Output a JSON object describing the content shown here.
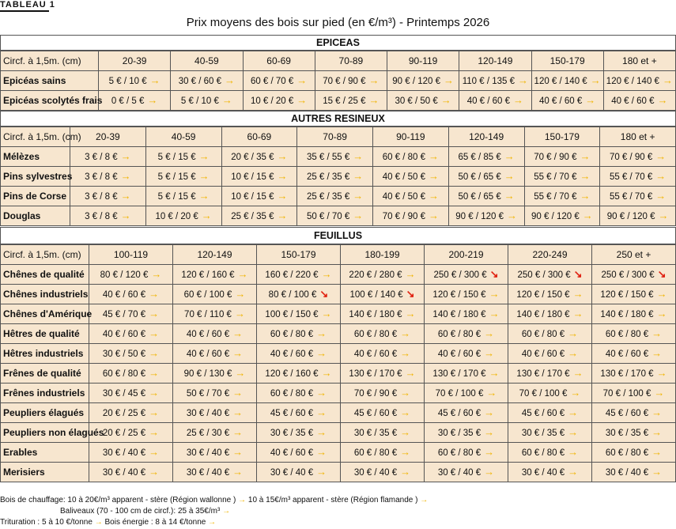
{
  "tag": "TABLEAU 1",
  "title": "Prix moyens des bois sur pied (en €/m³) - Printemps 2026",
  "sections": [
    {
      "name": "EPICEAS",
      "header_label": "Circf. à 1,5m. (cm)",
      "columns": [
        "20-39",
        "40-59",
        "60-69",
        "70-89",
        "90-119",
        "120-149",
        "150-179",
        "180 et +"
      ],
      "rows": [
        {
          "label": "Epicéas sains",
          "values": [
            "5 € / 10 €",
            "30 € / 60 €",
            "60 € / 70 €",
            "70 € / 90 €",
            "90 € / 120 €",
            "110 € / 135 €",
            "120 € / 140 €",
            "120 € / 140 €"
          ],
          "trend": [
            "up",
            "up",
            "up",
            "up",
            "up",
            "up",
            "up",
            "up"
          ]
        },
        {
          "label": "Epicéas scolytés frais",
          "values": [
            "0 € / 5 €",
            "5 € / 10 €",
            "10 € / 20 €",
            "15 € / 25 €",
            "30 € / 50 €",
            "40 € / 60 €",
            "40 € / 60 €",
            "40 € / 60 €"
          ],
          "trend": [
            "up",
            "up",
            "up",
            "up",
            "up",
            "up",
            "up",
            "up"
          ]
        }
      ]
    },
    {
      "name": "AUTRES RESINEUX",
      "header_label": "Circf. à 1,5m. (cm)",
      "columns": [
        "20-39",
        "40-59",
        "60-69",
        "70-89",
        "90-119",
        "120-149",
        "150-179",
        "180 et +"
      ],
      "rows": [
        {
          "label": "Mélèzes",
          "values": [
            "3 € / 8 €",
            "5 € / 15 €",
            "20 € / 35 €",
            "35 € / 55 €",
            "60 € / 80 €",
            "65 € / 85 €",
            "70 € / 90 €",
            "70 € / 90 €"
          ],
          "trend": [
            "up",
            "up",
            "up",
            "up",
            "up",
            "up",
            "up",
            "up"
          ]
        },
        {
          "label": "Pins sylvestres",
          "values": [
            "3 € / 8 €",
            "5 € / 15 €",
            "10 € / 15 €",
            "25 € / 35 €",
            "40 € / 50 €",
            "50 € / 65 €",
            "55 € / 70 €",
            "55 € / 70 €"
          ],
          "trend": [
            "up",
            "up",
            "up",
            "up",
            "up",
            "up",
            "up",
            "up"
          ]
        },
        {
          "label": "Pins de Corse",
          "values": [
            "3 € / 8 €",
            "5 € / 15 €",
            "10 € / 15 €",
            "25 € / 35 €",
            "40 € / 50 €",
            "50 € / 65 €",
            "55 € / 70 €",
            "55 € / 70 €"
          ],
          "trend": [
            "up",
            "up",
            "up",
            "up",
            "up",
            "up",
            "up",
            "up"
          ]
        },
        {
          "label": "Douglas",
          "values": [
            "3 € / 8 €",
            "10 € / 20 €",
            "25 € / 35 €",
            "50 € / 70 €",
            "70 € / 90 €",
            "90 € / 120 €",
            "90 € / 120 €",
            "90 € / 120 €"
          ],
          "trend": [
            "up",
            "up",
            "up",
            "up",
            "up",
            "up",
            "up",
            "up"
          ]
        }
      ]
    },
    {
      "name": "FEUILLUS",
      "header_label": "Circf. à 1,5m. (cm)",
      "columns": [
        "100-119",
        "120-149",
        "150-179",
        "180-199",
        "200-219",
        "220-249",
        "250 et +"
      ],
      "rows": [
        {
          "label": "Chênes de qualité",
          "values": [
            "80 € / 120 €",
            "120 € / 160 €",
            "160 € / 220 €",
            "220 € / 280 €",
            "250 € / 300 €",
            "250 € / 300 €",
            "250 € / 300 €"
          ],
          "trend": [
            "up",
            "up",
            "up",
            "up",
            "down",
            "down",
            "down"
          ]
        },
        {
          "label": "Chênes industriels",
          "values": [
            "40 € / 60 €",
            "60 € / 100 €",
            "80 € / 100 €",
            "100 € / 140 €",
            "120 € / 150 €",
            "120 € / 150 €",
            "120 € / 150 €"
          ],
          "trend": [
            "up",
            "up",
            "down",
            "down",
            "up",
            "up",
            "up"
          ]
        },
        {
          "label": "Chênes d'Amérique",
          "values": [
            "45 € / 70 €",
            "70 € / 110 €",
            "100 € / 150 €",
            "140 € / 180 €",
            "140 € / 180 €",
            "140 € / 180 €",
            "140 € / 180 €"
          ],
          "trend": [
            "up",
            "up",
            "up",
            "up",
            "up",
            "up",
            "up"
          ]
        },
        {
          "label": "Hêtres de qualité",
          "values": [
            "40 € / 60 €",
            "40 € / 60 €",
            "60 € / 80 €",
            "60 € / 80 €",
            "60 € / 80 €",
            "60 € / 80 €",
            "60 € / 80 €"
          ],
          "trend": [
            "up",
            "up",
            "up",
            "up",
            "up",
            "up",
            "up"
          ]
        },
        {
          "label": "Hêtres industriels",
          "values": [
            "30 € / 50 €",
            "40 € / 60 €",
            "40 € / 60 €",
            "40 € / 60 €",
            "40 € / 60 €",
            "40 € / 60 €",
            "40 € / 60 €"
          ],
          "trend": [
            "up",
            "up",
            "up",
            "up",
            "up",
            "up",
            "up"
          ]
        },
        {
          "label": "Frênes de qualité",
          "values": [
            "60 € / 80 €",
            "90 € / 130 €",
            "120 € / 160 €",
            "130 € / 170 €",
            "130 € / 170 €",
            "130 € / 170 €",
            "130 € / 170 €"
          ],
          "trend": [
            "up",
            "up",
            "up",
            "up",
            "up",
            "up",
            "up"
          ]
        },
        {
          "label": "Frênes industriels",
          "values": [
            "30 € / 45 €",
            "50 € / 70 €",
            "60 € / 80 €",
            "70 € / 90 €",
            "70 € / 100 €",
            "70 € / 100 €",
            "70 € / 100 €"
          ],
          "trend": [
            "up",
            "up",
            "up",
            "up",
            "up",
            "up",
            "up"
          ]
        },
        {
          "label": "Peupliers élagués",
          "values": [
            "20 € / 25 €",
            "30 € / 40 €",
            "45 € / 60 €",
            "45 € / 60 €",
            "45 € / 60 €",
            "45 € / 60 €",
            "45 € / 60 €"
          ],
          "trend": [
            "up",
            "up",
            "up",
            "up",
            "up",
            "up",
            "up"
          ]
        },
        {
          "label": "Peupliers non élagués",
          "values": [
            "20 € / 25 €",
            "25 € / 30 €",
            "30 € / 35 €",
            "30 € / 35 €",
            "30 € / 35 €",
            "30 € / 35 €",
            "30 € / 35 €"
          ],
          "trend": [
            "up",
            "up",
            "up",
            "up",
            "up",
            "up",
            "up"
          ]
        },
        {
          "label": "Erables",
          "values": [
            "30 € / 40 €",
            "30 € / 40 €",
            "40 € / 60 €",
            "60 € / 80 €",
            "60 € / 80 €",
            "60 € / 80 €",
            "60 € / 80 €"
          ],
          "trend": [
            "up",
            "up",
            "up",
            "up",
            "up",
            "up",
            "up"
          ]
        },
        {
          "label": "Merisiers",
          "values": [
            "30 € / 40 €",
            "30 € / 40 €",
            "30 € / 40 €",
            "30 € / 40 €",
            "30 € / 40 €",
            "30 € / 40 €",
            "30 € / 40 €"
          ],
          "trend": [
            "up",
            "up",
            "up",
            "up",
            "up",
            "up",
            "up"
          ]
        }
      ]
    }
  ],
  "footnotes": {
    "line1_a": "Bois de chauffage: 10 à 20€/m³ apparent - stère (Région wallonne )",
    "line1_b": "10 à 15€/m³ apparent - stère (Région flamande )",
    "line2": "Baliveaux (70 - 100 cm de circf.): 25 à 35€/m³",
    "line3_a": "Trituration : 5 à 10 €/tonne",
    "line3_b": "Bois énergie : 8 à 14 €/tonne"
  },
  "colors": {
    "cell_bg": "#f7e6cf",
    "arrow_up": "#f0b400",
    "arrow_down": "#e02010"
  },
  "icons": {
    "up": "arrow-right-icon",
    "down": "arrow-down-right-icon"
  }
}
